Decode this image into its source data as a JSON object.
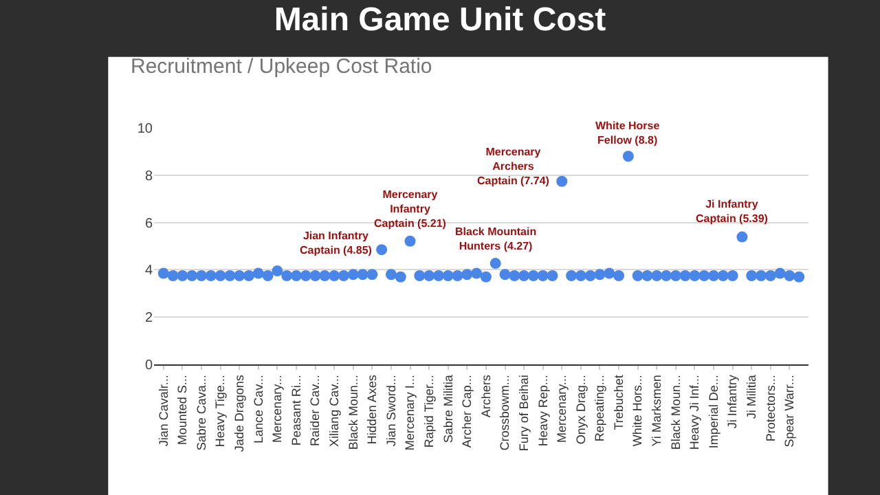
{
  "chart_data": {
    "type": "scatter",
    "title": "Main Game Unit Cost",
    "subtitle": "Recruitment / Upkeep Cost Ratio",
    "categories": [
      "Jian Cavalr...",
      null,
      "Mounted S...",
      null,
      "Sabre Cava...",
      null,
      "Heavy Tige...",
      null,
      "Jade Dragons",
      null,
      "Lance Cav...",
      null,
      "Mercenary...",
      null,
      "Peasant Ri...",
      null,
      "Raider Cav...",
      null,
      "Xiliang Cav...",
      null,
      "Black Moun...",
      null,
      "Hidden Axes",
      null,
      "Jian Sword...",
      null,
      "Mercenary I...",
      null,
      "Rapid Tiger...",
      null,
      "Sabre Militia",
      null,
      "Archer Cap...",
      null,
      "Archers",
      null,
      "Crossbowm...",
      null,
      "Fury of Beihai",
      null,
      "Heavy Rep...",
      null,
      "Mercenary...",
      null,
      "Onyx Drag...",
      null,
      "Repeating...",
      null,
      "Trebuchet",
      null,
      "White Hors...",
      null,
      "Yi Marksmen",
      null,
      "Black Moun...",
      null,
      "Heavy Ji Inf...",
      null,
      "Imperial De...",
      null,
      "Ji Infantry",
      null,
      "Ji Militia",
      null,
      "Protectors...",
      null,
      "Spear Warr...",
      null
    ],
    "series": [
      {
        "color": "#4a86e8",
        "values": [
          3.85,
          3.75,
          3.75,
          3.75,
          3.75,
          3.75,
          3.75,
          3.75,
          3.75,
          3.75,
          3.85,
          3.75,
          3.95,
          3.75,
          3.75,
          3.75,
          3.75,
          3.75,
          3.75,
          3.75,
          3.8,
          3.8,
          3.8,
          4.85,
          3.8,
          3.7,
          5.21,
          3.75,
          3.75,
          3.75,
          3.75,
          3.75,
          3.8,
          3.85,
          3.7,
          4.27,
          3.8,
          3.75,
          3.75,
          3.75,
          3.75,
          3.75,
          7.74,
          3.75,
          3.75,
          3.75,
          3.8,
          3.85,
          3.75,
          8.8,
          3.75,
          3.75,
          3.75,
          3.75,
          3.75,
          3.75,
          3.75,
          3.75,
          3.75,
          3.75,
          3.75,
          5.39,
          3.75,
          3.75,
          3.75,
          3.85,
          3.75,
          3.7
        ]
      }
    ],
    "ylim": [
      0,
      10
    ],
    "yticks": [
      0,
      2,
      4,
      6,
      8,
      10
    ],
    "grid": "y",
    "marker": "circle",
    "annotations": [
      "Jian Infantry Captain (4.85)",
      "Mercenary Infantry Captain (5.21)",
      "Black Mountain Hunters (4.27)",
      "Mercenary Archers Captain (7.74)",
      "White Horse Fellow (8.8)",
      "Ji Infantry Captain (5.39)"
    ]
  }
}
